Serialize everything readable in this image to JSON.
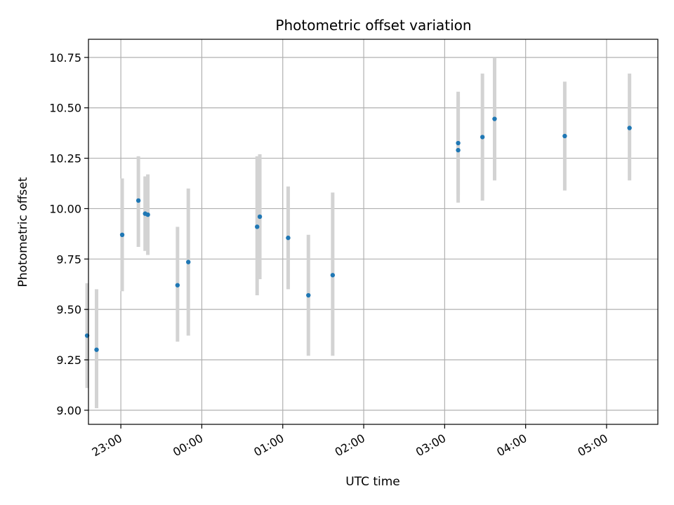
{
  "chart_data": {
    "type": "scatter",
    "title": "Photometric offset variation",
    "xlabel": "UTC time",
    "ylabel": "Photometric offset",
    "x_ticks": [
      "23:00",
      "00:00",
      "01:00",
      "02:00",
      "03:00",
      "04:00",
      "05:00"
    ],
    "y_ticks": [
      "9.00",
      "9.25",
      "9.50",
      "9.75",
      "10.00",
      "10.25",
      "10.50",
      "10.75"
    ],
    "xlim": [
      "22:36",
      "05:38"
    ],
    "ylim": [
      8.93,
      10.84
    ],
    "grid": true,
    "errorbar_color": "#d3d3d3",
    "point_color": "#1f77b4",
    "points": [
      {
        "x": "22:35",
        "y": 9.37,
        "err_low": 9.11,
        "err_high": 9.63
      },
      {
        "x": "22:42",
        "y": 9.3,
        "err_low": 9.01,
        "err_high": 9.6
      },
      {
        "x": "23:01",
        "y": 9.87,
        "err_low": 9.59,
        "err_high": 10.15
      },
      {
        "x": "23:13",
        "y": 10.04,
        "err_low": 9.81,
        "err_high": 10.26
      },
      {
        "x": "23:18",
        "y": 9.975,
        "err_low": 9.79,
        "err_high": 10.16
      },
      {
        "x": "23:20",
        "y": 9.97,
        "err_low": 9.77,
        "err_high": 10.17
      },
      {
        "x": "23:42",
        "y": 9.62,
        "err_low": 9.34,
        "err_high": 9.91
      },
      {
        "x": "23:50",
        "y": 9.735,
        "err_low": 9.37,
        "err_high": 10.1
      },
      {
        "x": "00:41",
        "y": 9.91,
        "err_low": 9.57,
        "err_high": 10.26
      },
      {
        "x": "00:43",
        "y": 9.96,
        "err_low": 9.65,
        "err_high": 10.27
      },
      {
        "x": "01:04",
        "y": 9.855,
        "err_low": 9.6,
        "err_high": 10.11
      },
      {
        "x": "01:19",
        "y": 9.57,
        "err_low": 9.27,
        "err_high": 9.87
      },
      {
        "x": "01:37",
        "y": 9.67,
        "err_low": 9.27,
        "err_high": 10.08
      },
      {
        "x": "03:10",
        "y": 10.325,
        "err_low": 10.07,
        "err_high": 10.58
      },
      {
        "x": "03:10",
        "y": 10.29,
        "err_low": 10.03,
        "err_high": 10.55
      },
      {
        "x": "03:28",
        "y": 10.355,
        "err_low": 10.04,
        "err_high": 10.67
      },
      {
        "x": "03:37",
        "y": 10.445,
        "err_low": 10.14,
        "err_high": 10.75
      },
      {
        "x": "04:29",
        "y": 10.36,
        "err_low": 10.09,
        "err_high": 10.63
      },
      {
        "x": "05:17",
        "y": 10.4,
        "err_low": 10.14,
        "err_high": 10.67
      }
    ]
  }
}
